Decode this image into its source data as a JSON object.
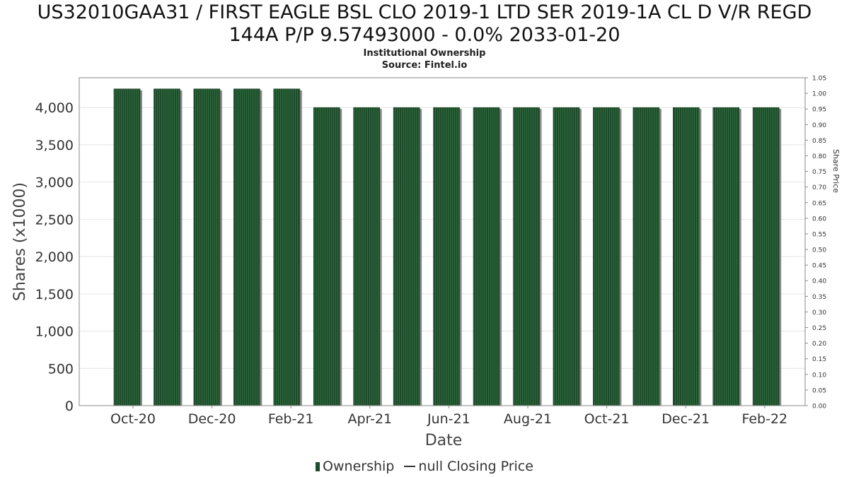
{
  "header": {
    "title_line1": "US32010GAA31 / FIRST EAGLE BSL CLO 2019-1 LTD SER 2019-1A CL D V/R REGD",
    "title_line2": "144A P/P 9.57493000 - 0.0% 2033-01-20",
    "subtitle": "Institutional Ownership",
    "source": "Source: Fintel.io"
  },
  "legend": {
    "ownership": "Ownership",
    "price": "null Closing Price"
  },
  "colors": {
    "bar": "#1e4d2b",
    "bar_stripe": "#2f6b3e",
    "bar_shadow": "#8a8a8a",
    "grid": "#e4e4e4",
    "axis": "#888888"
  },
  "chart_data": {
    "type": "bar",
    "xlabel": "Date",
    "ylabel": "Shares (x1000)",
    "y2label": "Share Price",
    "ylim": [
      0,
      4400
    ],
    "y2lim": [
      0,
      1.05
    ],
    "yticks": [
      "0",
      "500",
      "1,000",
      "1,500",
      "2,000",
      "2,500",
      "3,000",
      "3,500",
      "4,000"
    ],
    "y2ticks": [
      "0.00",
      "0.05",
      "0.10",
      "0.15",
      "0.20",
      "0.25",
      "0.30",
      "0.35",
      "0.40",
      "0.45",
      "0.50",
      "0.55",
      "0.60",
      "0.65",
      "0.70",
      "0.75",
      "0.80",
      "0.85",
      "0.90",
      "0.95",
      "1.00",
      "1.05"
    ],
    "xticks": [
      "Oct-20",
      "Dec-20",
      "Feb-21",
      "Apr-21",
      "Jun-21",
      "Aug-21",
      "Oct-21",
      "Dec-21",
      "Feb-22"
    ],
    "grid": true,
    "legend_position": "bottom",
    "series": [
      {
        "name": "Ownership",
        "values": [
          4250,
          4250,
          4250,
          4250,
          4250,
          4000,
          4000,
          4000,
          4000,
          4000,
          4000,
          4000,
          4000,
          4000,
          4000,
          4000,
          4000
        ]
      },
      {
        "name": "null Closing Price",
        "values": []
      }
    ]
  }
}
